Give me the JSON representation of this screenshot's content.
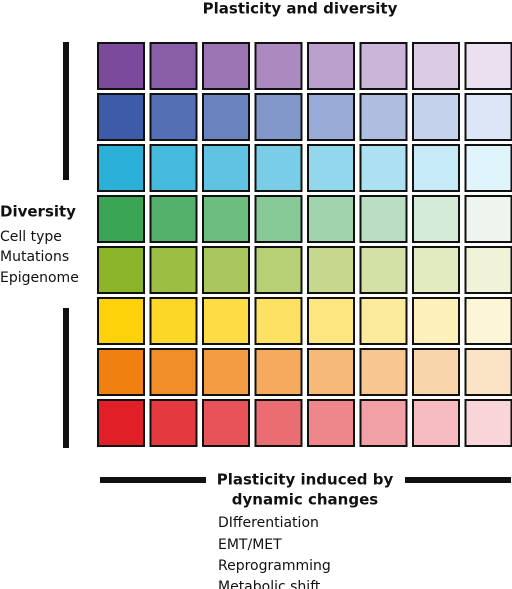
{
  "title": "Plasticity and diversity",
  "left": {
    "heading": "Diversity",
    "items": [
      "Cell type",
      "Mutations",
      "Epigenome"
    ]
  },
  "bottom": {
    "heading_lines": [
      "Plasticity induced by",
      "dynamic changes"
    ],
    "items": [
      "DIfferentiation",
      "EMT/MET",
      "Reprogramming",
      "Metabolic shift"
    ]
  }
}
